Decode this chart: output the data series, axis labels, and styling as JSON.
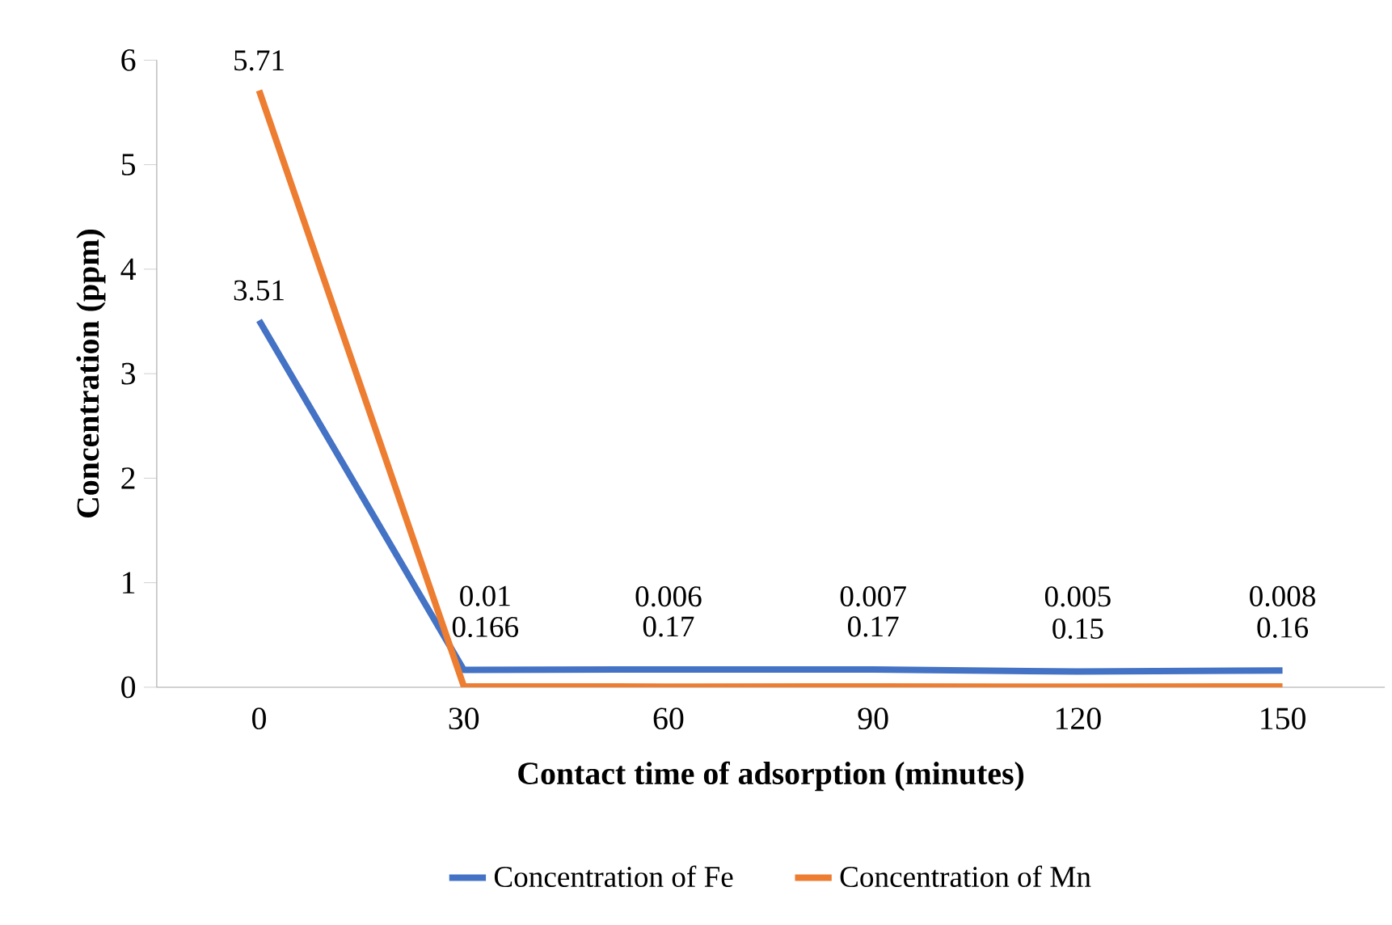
{
  "chart_data": {
    "type": "line",
    "xlabel": "Contact time of adsorption (minutes)",
    "ylabel": "Concentration (ppm)",
    "categories": [
      "0",
      "30",
      "60",
      "90",
      "120",
      "150"
    ],
    "series": [
      {
        "name": "Concentration of Fe",
        "color": "#4472c4",
        "values": [
          3.51,
          0.166,
          0.17,
          0.17,
          0.15,
          0.16
        ]
      },
      {
        "name": "Concentration of Mn",
        "color": "#ed7d31",
        "values": [
          5.71,
          0.01,
          0.006,
          0.007,
          0.005,
          0.008
        ]
      }
    ],
    "ylim": [
      0,
      6
    ],
    "yticks": [
      0,
      1,
      2,
      3,
      4,
      5,
      6
    ],
    "data_labels": true,
    "legend": "bottom",
    "grid": false,
    "marker": "none",
    "line_style": "solid"
  }
}
